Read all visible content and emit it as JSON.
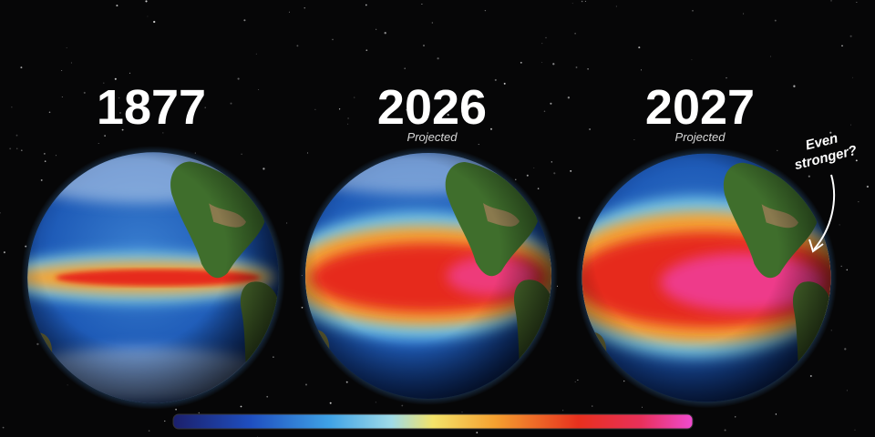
{
  "panels": [
    {
      "year": "1877"
    },
    {
      "year": "2026",
      "note": "Projected"
    },
    {
      "year": "2027",
      "note": "Projected"
    }
  ],
  "annotation": {
    "lines": [
      "Even",
      "stronger?"
    ]
  }
}
